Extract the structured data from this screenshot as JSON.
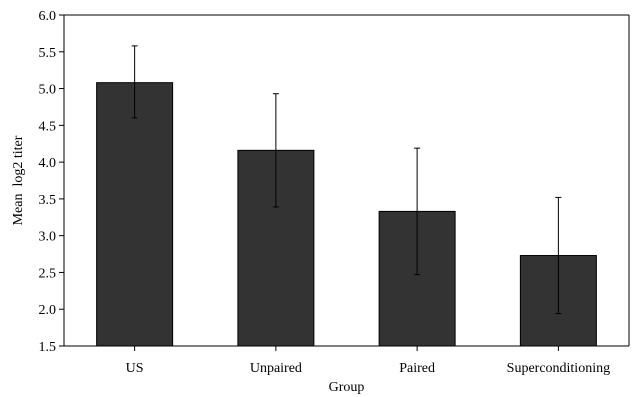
{
  "chart_data": {
    "type": "bar",
    "title": "",
    "xlabel": "Group",
    "ylabel": "Mean  log2 titer",
    "categories": [
      "US",
      "Unpaired",
      "Paired",
      "Superconditioning"
    ],
    "values": [
      5.08,
      4.16,
      3.33,
      2.73
    ],
    "error_upper": [
      5.58,
      4.93,
      4.19,
      3.52
    ],
    "error_lower": [
      4.6,
      3.39,
      2.47,
      1.94
    ],
    "ylim": [
      1.5,
      6.0
    ],
    "yticks": [
      1.5,
      2.0,
      2.5,
      3.0,
      3.5,
      4.0,
      4.5,
      5.0,
      5.5,
      6.0
    ],
    "ytick_labels": [
      "1.5",
      "2.0",
      "2.5",
      "3.0",
      "3.5",
      "4.0",
      "4.5",
      "5.0",
      "5.5",
      "6.0"
    ],
    "grid": false,
    "legend": "none",
    "bar_color": "#333333",
    "axis_color": "#000000"
  }
}
